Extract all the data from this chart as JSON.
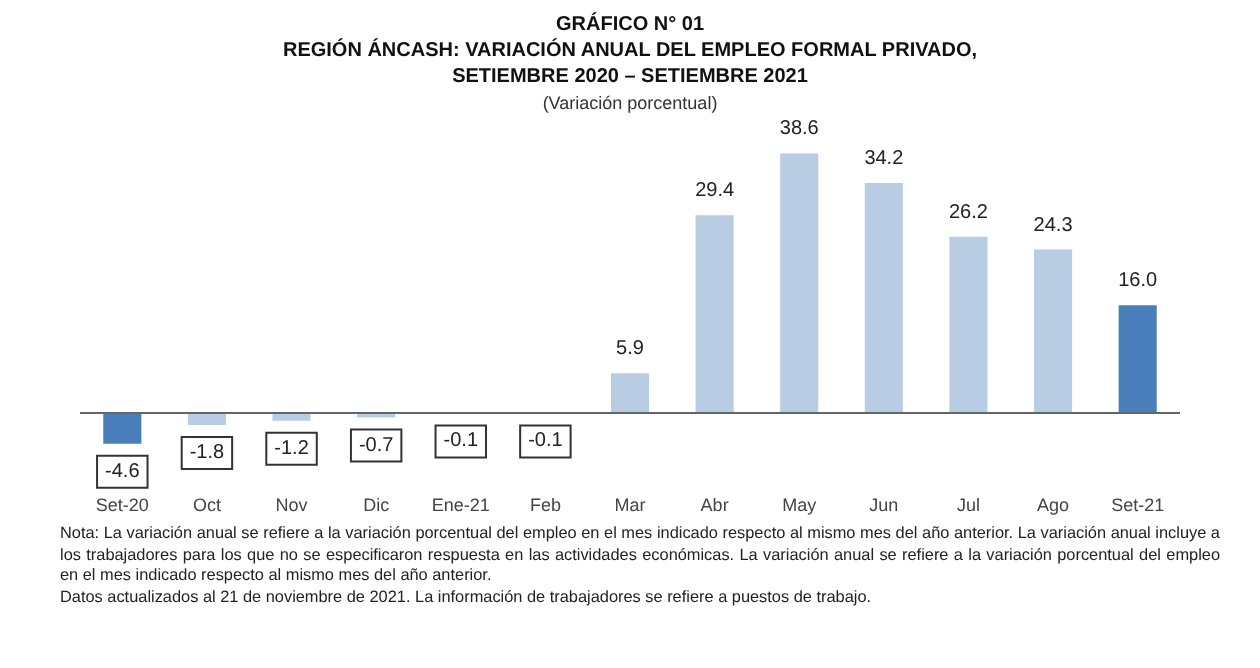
{
  "chart_data": {
    "type": "bar",
    "title": "GRÁFICO N° 01\nREGIÓN ÁNCASH: VARIACIÓN ANUAL DEL EMPLEO FORMAL PRIVADO,\nSETIEMBRE 2020 – SETIEMBRE 2021",
    "subtitle": "(Variación porcentual)",
    "categories": [
      "Set-20",
      "Oct",
      "Nov",
      "Dic",
      "Ene-21",
      "Feb",
      "Mar",
      "Abr",
      "May",
      "Jun",
      "Jul",
      "Ago",
      "Set-21"
    ],
    "values": [
      -4.6,
      -1.8,
      -1.2,
      -0.7,
      -0.1,
      -0.1,
      5.9,
      29.4,
      38.6,
      34.2,
      26.2,
      24.3,
      16.0
    ],
    "value_labels": [
      "-4.6",
      "-1.8",
      "-1.2",
      "-0.7",
      "-0.1",
      "-0.1",
      "5.9",
      "29.4",
      "38.6",
      "34.2",
      "26.2",
      "24.3",
      "16.0"
    ],
    "colors": [
      "#4a7ebb",
      "#b8cce4",
      "#b8cce4",
      "#b8cce4",
      "#b8cce4",
      "#b8cce4",
      "#b8cce4",
      "#b8cce4",
      "#b8cce4",
      "#b8cce4",
      "#b8cce4",
      "#b8cce4",
      "#4a7ebb"
    ],
    "annotations": [
      "Nota: La variación anual se refiere a la variación porcentual del empleo en el mes indicado respecto al mismo mes del año anterior. La variación anual incluye a los trabajadores para los que no se especificaron respuesta en las actividades económicas. La variación anual se refiere a la variación porcentual del empleo en el mes indicado respecto al mismo mes del año anterior.",
      "Datos actualizados al 21 de noviembre de 2021. La información de trabajadores se refiere a puestos de trabajo."
    ],
    "grid": false
  }
}
